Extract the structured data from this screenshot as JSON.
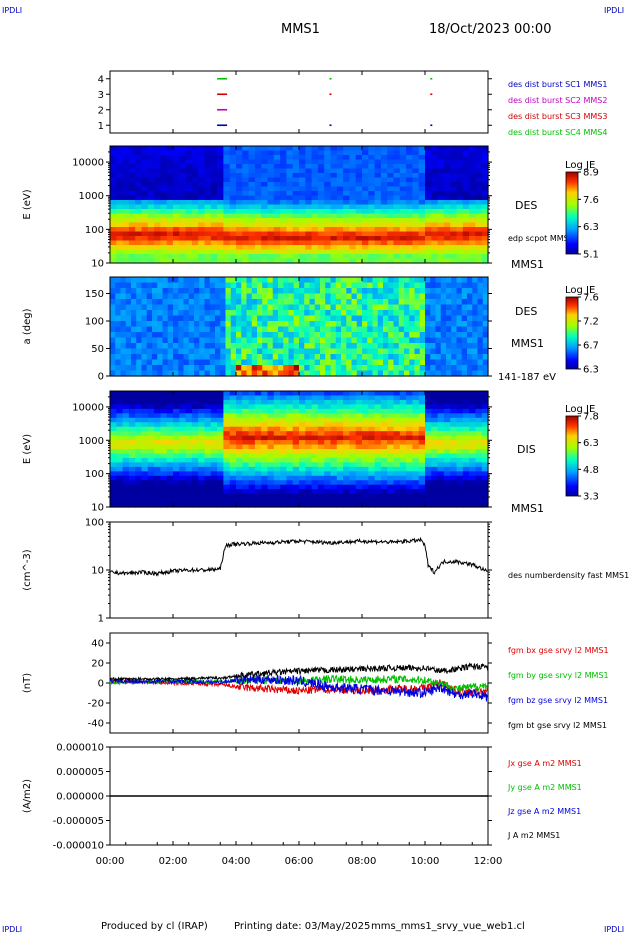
{
  "header": {
    "corner_tl": "IPDLI",
    "corner_tr": "IPDLI",
    "title": "MMS1",
    "datetime": "18/Oct/2023 00:00",
    "corner_bl": "IPDLI",
    "corner_br": "IPDLI"
  },
  "footer": {
    "produced_by": "Produced by cl (IRAP)",
    "printing_date": "Printing date: 03/May/2025",
    "filename": "mms_mms1_srvy_vue_web1.cl"
  },
  "colors": {
    "mms1": "#0000c0",
    "mms2": "#c000c0",
    "mms3": "#d00000",
    "mms4": "#00c000",
    "bx": "#e00000",
    "by": "#00c000",
    "bz": "#0000e0",
    "bt": "#000000"
  },
  "chart_data": [
    {
      "type": "scatter",
      "panel": "burst",
      "ylim": [
        0.5,
        4.5
      ],
      "yticks": [
        "1",
        "2",
        "3",
        "4"
      ],
      "legend": [
        "des dist burst SC1 MMS1",
        "des dist burst SC2 MMS2",
        "des dist burst SC3 MMS3",
        "des dist burst SC4 MMS4"
      ],
      "series": [
        {
          "name": "des dist burst SC1 MMS1",
          "y": 1,
          "x_hours": [
            3.4,
            7.0,
            10.2
          ]
        },
        {
          "name": "des dist burst SC2 MMS2",
          "y": 2,
          "x_hours": [
            3.4
          ]
        },
        {
          "name": "des dist burst SC3 MMS3",
          "y": 3,
          "x_hours": [
            3.4,
            7.0,
            10.2
          ]
        },
        {
          "name": "des dist burst SC4 MMS4",
          "y": 4,
          "x_hours": [
            3.4,
            7.0,
            10.2
          ]
        }
      ]
    },
    {
      "type": "heatmap",
      "panel": "des_energy",
      "ylabel": "E (eV)",
      "yscale": "log",
      "ylim": [
        10,
        30000
      ],
      "yticks": [
        "10",
        "100",
        "1000",
        "10000"
      ],
      "label": "DES",
      "sublabel": "MMS1",
      "overlay_label": "edp scpot MMS1",
      "colorbar": {
        "title": "Log JE",
        "range": [
          5.1,
          8.9
        ],
        "ticks": [
          "8.9",
          "7.6",
          "6.3",
          "5.1"
        ]
      }
    },
    {
      "type": "heatmap",
      "panel": "des_pitch",
      "ylabel": "a (deg)",
      "ylim": [
        0,
        180
      ],
      "yticks": [
        "0",
        "50",
        "100",
        "150"
      ],
      "label": "DES",
      "sublabel": "MMS1",
      "energy_label": "141-187 eV",
      "colorbar": {
        "title": "Log JE",
        "range": [
          6.3,
          7.6
        ],
        "ticks": [
          "7.6",
          "7.2",
          "6.7",
          "6.3"
        ]
      }
    },
    {
      "type": "heatmap",
      "panel": "dis_energy",
      "ylabel": "E (eV)",
      "yscale": "log",
      "ylim": [
        10,
        30000
      ],
      "yticks": [
        "10",
        "100",
        "1000",
        "10000"
      ],
      "label": "DIS",
      "sublabel": "MMS1",
      "colorbar": {
        "title": "Log JE",
        "range": [
          3.3,
          7.8
        ],
        "ticks": [
          "7.8",
          "6.3",
          "4.8",
          "3.3"
        ]
      }
    },
    {
      "type": "line",
      "panel": "density",
      "ylabel": "(cm^-3)",
      "yscale": "log",
      "ylim": [
        1,
        100
      ],
      "yticks": [
        "1",
        "10",
        "100"
      ],
      "legend": [
        "des numberdensity fast MMS1"
      ],
      "x_hours": [
        0,
        0.5,
        1.0,
        1.5,
        2.0,
        2.5,
        3.0,
        3.5,
        3.55,
        3.7,
        4.0,
        5.0,
        6.0,
        7.0,
        8.0,
        9.0,
        9.9,
        10.0,
        10.1,
        10.3,
        10.6,
        11.0,
        11.5,
        12.0
      ],
      "y": [
        9,
        8.5,
        9,
        8.5,
        9.5,
        10,
        10,
        10.5,
        15,
        33,
        35,
        37,
        40,
        37,
        40,
        38,
        42,
        30,
        12,
        9,
        15,
        15,
        13,
        9
      ]
    },
    {
      "type": "line",
      "panel": "magnetic_field",
      "ylabel": "(nT)",
      "ylim": [
        -50,
        50
      ],
      "yticks": [
        "-40",
        "-20",
        "0",
        "20",
        "40"
      ],
      "legend": [
        "fgm bx gse srvy l2 MMS1",
        "fgm by gse srvy l2 MMS1",
        "fgm bz gse srvy l2 MMS1",
        "fgm bt gse srvy l2 MMS1"
      ],
      "x_hours": [
        0,
        1,
        2,
        3,
        3.6,
        4,
        5,
        6,
        7,
        8,
        9,
        10,
        10.5,
        11,
        11.5,
        12
      ],
      "series": [
        {
          "name": "fgm bx gse srvy l2 MMS1",
          "values": [
            2,
            1,
            0,
            -1,
            -2,
            -4,
            -6,
            -8,
            -6,
            -8,
            -6,
            -5,
            0,
            -8,
            -10,
            -8
          ]
        },
        {
          "name": "fgm by gse srvy l2 MMS1",
          "values": [
            0,
            1,
            2,
            1,
            1,
            2,
            3,
            2,
            4,
            3,
            4,
            3,
            0,
            -6,
            -4,
            -2
          ]
        },
        {
          "name": "fgm bz gse srvy l2 MMS1",
          "values": [
            2,
            1,
            2,
            1,
            1,
            3,
            4,
            2,
            -4,
            -6,
            -8,
            -10,
            -4,
            -12,
            -10,
            -14
          ]
        },
        {
          "name": "fgm bt gse srvy l2 MMS1",
          "values": [
            4,
            4,
            4,
            5,
            5,
            7,
            10,
            12,
            13,
            14,
            15,
            15,
            12,
            14,
            17,
            16
          ]
        }
      ]
    },
    {
      "type": "line",
      "panel": "current_density",
      "ylabel": "(A/m2)",
      "ylim": [
        -1e-05,
        1e-05
      ],
      "yticks": [
        "0.000010",
        "0.000005",
        "0.000000",
        "-0.000005",
        "-0.000010"
      ],
      "legend": [
        "Jx gse A m2 MMS1",
        "Jy gse A m2 MMS1",
        "Jz gse A m2 MMS1",
        "J A m2 MMS1"
      ],
      "x_hours": [
        0,
        12
      ],
      "y": [
        0,
        0
      ]
    }
  ],
  "time_axis": {
    "xlim_hours": [
      0,
      12
    ],
    "ticks": [
      "00:00",
      "02:00",
      "04:00",
      "06:00",
      "08:00",
      "10:00",
      "12:00"
    ]
  }
}
